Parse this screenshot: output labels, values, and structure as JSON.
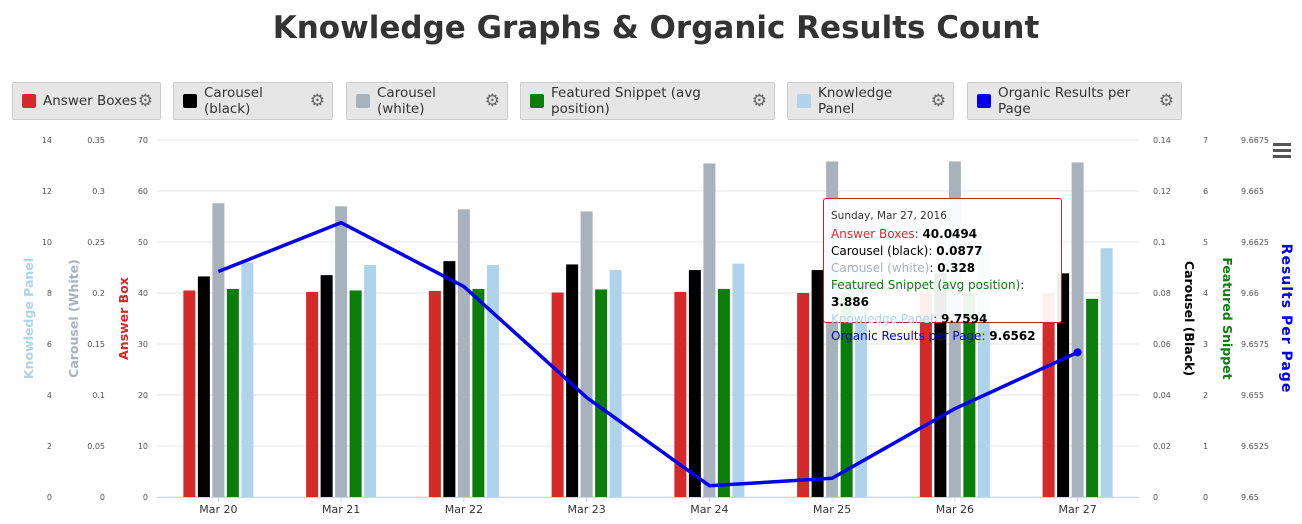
{
  "title": "Knowledge Graphs & Organic Results Count",
  "legend": [
    {
      "label": "Answer Boxes",
      "color": "#d42a2a"
    },
    {
      "label": "Carousel (black)",
      "color": "#000000"
    },
    {
      "label": "Carousel (white)",
      "color": "#a7b2bd"
    },
    {
      "label": "Featured Snippet (avg position)",
      "color": "#0a7d0a"
    },
    {
      "label": "Knowledge Panel",
      "color": "#aed3ea"
    },
    {
      "label": "Organic Results per Page",
      "color": "#0000ee"
    }
  ],
  "tooltip": {
    "date": "Sunday, Mar 27, 2016",
    "rows": [
      {
        "label": "Answer Boxes",
        "value": "40.0494",
        "color": "#d42a2a"
      },
      {
        "label": "Carousel (black)",
        "value": "0.0877",
        "color": "#000000"
      },
      {
        "label": "Carousel (white)",
        "value": "0.328",
        "color": "#a7b2bd"
      },
      {
        "label": "Featured Snippet (avg position)",
        "value": "3.886",
        "color": "#0a7d0a"
      },
      {
        "label": "Knowledge Panel",
        "value": "9.7594",
        "color": "#aed3ea"
      },
      {
        "label": "Organic Results per Page",
        "value": "9.6562",
        "color": "#0000ee"
      }
    ]
  },
  "chart_data": {
    "type": "bar",
    "categories": [
      "Mar 20",
      "Mar 21",
      "Mar 22",
      "Mar 23",
      "Mar 24",
      "Mar 25",
      "Mar 26",
      "Mar 27"
    ],
    "axes": [
      {
        "id": "kp",
        "title": "Knowledge Panel",
        "color": "#aed3ea",
        "side": "left",
        "min": 0,
        "max": 14,
        "ticks": [
          "0",
          "2",
          "4",
          "6",
          "8",
          "10",
          "12",
          "14"
        ]
      },
      {
        "id": "cw",
        "title": "Carousel (White)",
        "color": "#a7b2bd",
        "side": "left",
        "min": 0,
        "max": 0.35,
        "ticks": [
          "0",
          "0.05",
          "0.1",
          "0.15",
          "0.2",
          "0.25",
          "0.3",
          "0.35"
        ]
      },
      {
        "id": "ab",
        "title": "Answer Box",
        "color": "#d42a2a",
        "side": "left",
        "min": 0,
        "max": 70,
        "ticks": [
          "0",
          "10",
          "20",
          "30",
          "40",
          "50",
          "60",
          "70"
        ]
      },
      {
        "id": "cb",
        "title": "Carousel (Black)",
        "color": "#000000",
        "side": "right",
        "min": 0,
        "max": 0.14,
        "ticks": [
          "0",
          "0.02",
          "0.04",
          "0.06",
          "0.08",
          "0.1",
          "0.12",
          "0.14"
        ]
      },
      {
        "id": "fs",
        "title": "Featured Snippet",
        "color": "#0a7d0a",
        "side": "right",
        "min": 0,
        "max": 7,
        "ticks": [
          "0",
          "1",
          "2",
          "3",
          "4",
          "5",
          "6",
          "7"
        ]
      },
      {
        "id": "rp",
        "title": "Results Per Page",
        "color": "#0000ee",
        "side": "right",
        "min": 9.6485,
        "max": 9.6675,
        "ticks": [
          "9.65",
          "9.6525",
          "9.655",
          "9.6575",
          "9.66",
          "9.6625",
          "9.665",
          "9.6675"
        ]
      }
    ],
    "series": [
      {
        "name": "Answer Boxes",
        "type": "bar",
        "axis": "ab",
        "color": "#d42a2a",
        "values": [
          40.5,
          40.2,
          40.4,
          40.1,
          40.2,
          40.0,
          40.1,
          40.0494
        ]
      },
      {
        "name": "Carousel (black)",
        "type": "bar",
        "axis": "cb",
        "color": "#000000",
        "values": [
          0.0865,
          0.087,
          0.0925,
          0.0912,
          0.089,
          0.089,
          0.0878,
          0.0877
        ]
      },
      {
        "name": "Carousel (white)",
        "type": "bar",
        "axis": "cw",
        "color": "#a7b2bd",
        "values": [
          0.288,
          0.285,
          0.282,
          0.28,
          0.327,
          0.329,
          0.329,
          0.328
        ]
      },
      {
        "name": "Featured Snippet (avg position)",
        "type": "bar",
        "axis": "fs",
        "color": "#0a7d0a",
        "values": [
          4.08,
          4.05,
          4.08,
          4.07,
          4.08,
          4.0,
          4.0,
          3.886
        ]
      },
      {
        "name": "Knowledge Panel",
        "type": "bar",
        "axis": "kp",
        "color": "#aed3ea",
        "values": [
          9.2,
          9.1,
          9.1,
          8.9,
          9.15,
          8.85,
          9.7,
          9.7594
        ]
      },
      {
        "name": "Organic Results per Page",
        "type": "line",
        "axis": "rp",
        "color": "#0000ee",
        "values": [
          9.6605,
          9.6631,
          9.6597,
          9.6538,
          9.6491,
          9.6495,
          9.6532,
          9.6562
        ]
      }
    ]
  }
}
